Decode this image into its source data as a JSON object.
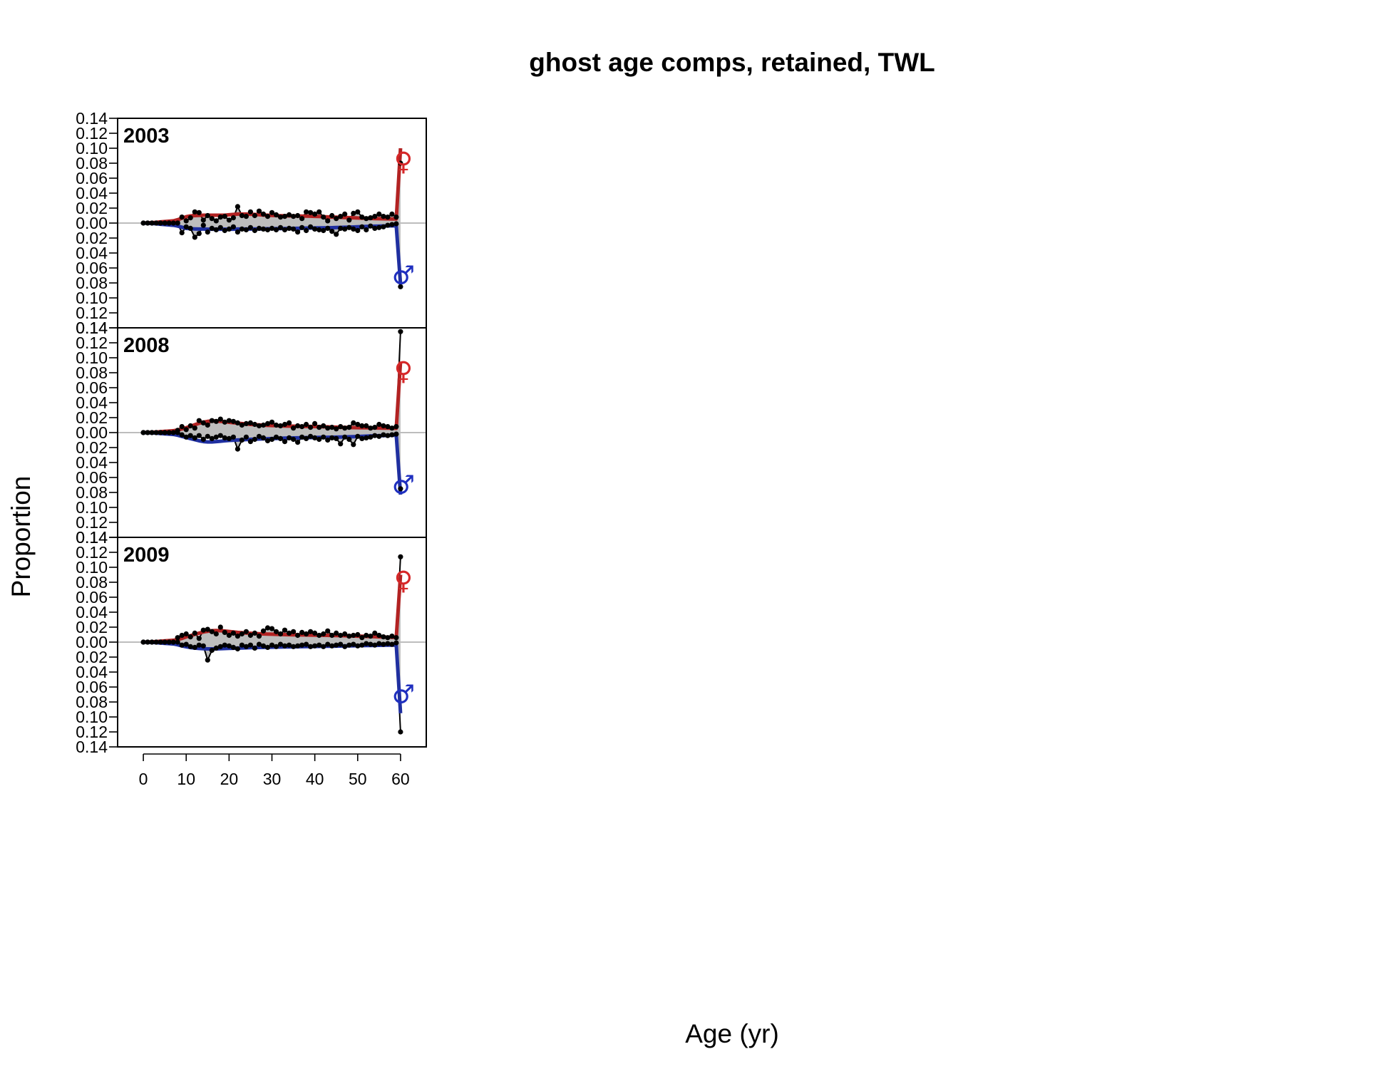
{
  "chart_data": {
    "type": "line",
    "title": "ghost age comps, retained, TWL",
    "xlabel": "Age (yr)",
    "ylabel": "Proportion",
    "xlim": [
      -6,
      66
    ],
    "ylim": [
      -0.14,
      0.14
    ],
    "x_ticks": [
      0,
      10,
      20,
      30,
      40,
      50,
      60
    ],
    "y_ticks": [
      0.14,
      0.12,
      0.1,
      0.08,
      0.06,
      0.04,
      0.02,
      0.0,
      0.02,
      0.04,
      0.06,
      0.08,
      0.1,
      0.12,
      0.14
    ],
    "x_tick_labels": [
      "0",
      "10",
      "20",
      "30",
      "40",
      "50",
      "60"
    ],
    "y_tick_labels": [
      "0.14",
      "0.12",
      "0.10",
      "0.08",
      "0.06",
      "0.04",
      "0.02",
      "0.00",
      "0.02",
      "0.04",
      "0.06",
      "0.08",
      "0.10",
      "0.12",
      "0.14"
    ],
    "colors": {
      "female": "#d62728",
      "female_line": "#b22222",
      "male": "#1f2fbf",
      "male_line": "#1f2fa0",
      "observed": "#000000",
      "fill": "#bdbdbd",
      "zero_line": "#bdbdbd"
    },
    "female_symbol": "♀",
    "male_symbol": "♂",
    "panels": [
      {
        "label": "2003",
        "obs_female": [
          0,
          0,
          0,
          0,
          0,
          0,
          0,
          0,
          0,
          0.008,
          0.003,
          0.007,
          0.015,
          0.014,
          0.004,
          0.01,
          0.006,
          0.003,
          0.008,
          0.009,
          0.004,
          0.007,
          0.022,
          0.01,
          0.009,
          0.015,
          0.01,
          0.016,
          0.012,
          0.009,
          0.014,
          0.011,
          0.008,
          0.009,
          0.011,
          0.009,
          0.01,
          0.006,
          0.015,
          0.014,
          0.012,
          0.015,
          0.008,
          0.003,
          0.01,
          0.006,
          0.009,
          0.012,
          0.004,
          0.013,
          0.015,
          0.008,
          0.006,
          0.007,
          0.009,
          0.012,
          0.009,
          0.008,
          0.012,
          0.008,
          0.08
        ],
        "obs_male": [
          0,
          0,
          0,
          0,
          0,
          0,
          0,
          0,
          0,
          -0.013,
          -0.005,
          -0.007,
          -0.019,
          -0.014,
          -0.003,
          -0.012,
          -0.007,
          -0.009,
          -0.006,
          -0.01,
          -0.008,
          -0.005,
          -0.012,
          -0.008,
          -0.009,
          -0.006,
          -0.01,
          -0.007,
          -0.008,
          -0.009,
          -0.007,
          -0.009,
          -0.006,
          -0.009,
          -0.007,
          -0.008,
          -0.012,
          -0.006,
          -0.01,
          -0.005,
          -0.008,
          -0.009,
          -0.01,
          -0.007,
          -0.011,
          -0.015,
          -0.007,
          -0.008,
          -0.006,
          -0.008,
          -0.01,
          -0.005,
          -0.009,
          -0.004,
          -0.007,
          -0.006,
          -0.005,
          -0.003,
          -0.002,
          -0.001,
          -0.085
        ],
        "exp_female": [
          0,
          0.0002,
          0.0005,
          0.001,
          0.0015,
          0.002,
          0.0025,
          0.003,
          0.0045,
          0.0065,
          0.0085,
          0.0095,
          0.01,
          0.0103,
          0.0105,
          0.0105,
          0.0105,
          0.0105,
          0.0105,
          0.0105,
          0.011,
          0.0115,
          0.012,
          0.012,
          0.012,
          0.0118,
          0.0115,
          0.0112,
          0.0108,
          0.0105,
          0.0102,
          0.01,
          0.0098,
          0.0097,
          0.0096,
          0.0095,
          0.0094,
          0.0093,
          0.0092,
          0.0091,
          0.009,
          0.0088,
          0.0085,
          0.0082,
          0.008,
          0.0078,
          0.0076,
          0.0074,
          0.0072,
          0.007,
          0.0068,
          0.0066,
          0.0064,
          0.0062,
          0.006,
          0.0058,
          0.0057,
          0.0056,
          0.0055,
          0.0054,
          0.1
        ],
        "exp_male": [
          0,
          -0.0002,
          -0.0005,
          -0.001,
          -0.0015,
          -0.002,
          -0.0025,
          -0.003,
          -0.004,
          -0.0055,
          -0.007,
          -0.0075,
          -0.0078,
          -0.008,
          -0.008,
          -0.0082,
          -0.0082,
          -0.0082,
          -0.0082,
          -0.0082,
          -0.0082,
          -0.0082,
          -0.008,
          -0.008,
          -0.008,
          -0.008,
          -0.0079,
          -0.0078,
          -0.0077,
          -0.0076,
          -0.0076,
          -0.0075,
          -0.0074,
          -0.0073,
          -0.0072,
          -0.0071,
          -0.007,
          -0.0069,
          -0.0068,
          -0.0067,
          -0.0066,
          -0.0065,
          -0.0064,
          -0.0063,
          -0.0062,
          -0.006,
          -0.0058,
          -0.0056,
          -0.0054,
          -0.0052,
          -0.005,
          -0.0048,
          -0.0046,
          -0.0044,
          -0.0042,
          -0.004,
          -0.0039,
          -0.0038,
          -0.0037,
          -0.0036,
          -0.082
        ]
      },
      {
        "label": "2008",
        "obs_female": [
          0,
          0,
          0,
          0,
          0,
          0,
          0,
          0,
          0.003,
          0.008,
          0.004,
          0.009,
          0.006,
          0.016,
          0.013,
          0.01,
          0.016,
          0.015,
          0.018,
          0.014,
          0.016,
          0.015,
          0.013,
          0.01,
          0.012,
          0.013,
          0.011,
          0.009,
          0.01,
          0.012,
          0.014,
          0.01,
          0.009,
          0.011,
          0.013,
          0.006,
          0.009,
          0.008,
          0.011,
          0.007,
          0.012,
          0.007,
          0.009,
          0.006,
          0.007,
          0.005,
          0.008,
          0.006,
          0.007,
          0.013,
          0.011,
          0.009,
          0.009,
          0.006,
          0.007,
          0.011,
          0.009,
          0.008,
          0.006,
          0.008,
          0.135
        ],
        "obs_male": [
          0,
          0,
          0,
          0,
          0,
          0,
          0,
          0,
          0,
          -0.003,
          -0.006,
          -0.004,
          -0.007,
          -0.004,
          -0.009,
          -0.005,
          -0.008,
          -0.006,
          -0.004,
          -0.007,
          -0.008,
          -0.006,
          -0.022,
          -0.01,
          -0.006,
          -0.012,
          -0.009,
          -0.005,
          -0.007,
          -0.011,
          -0.009,
          -0.006,
          -0.008,
          -0.012,
          -0.007,
          -0.009,
          -0.013,
          -0.006,
          -0.008,
          -0.005,
          -0.007,
          -0.009,
          -0.006,
          -0.01,
          -0.007,
          -0.008,
          -0.015,
          -0.006,
          -0.009,
          -0.016,
          -0.005,
          -0.008,
          -0.007,
          -0.006,
          -0.004,
          -0.005,
          -0.003,
          -0.004,
          -0.003,
          -0.002,
          -0.075
        ],
        "exp_female": [
          0,
          0.0002,
          0.0004,
          0.0008,
          0.0012,
          0.0016,
          0.002,
          0.0025,
          0.0035,
          0.005,
          0.0065,
          0.0085,
          0.0105,
          0.0125,
          0.014,
          0.015,
          0.0155,
          0.0155,
          0.015,
          0.0145,
          0.0138,
          0.0132,
          0.0126,
          0.012,
          0.0115,
          0.011,
          0.0106,
          0.0102,
          0.0099,
          0.0096,
          0.0094,
          0.0092,
          0.009,
          0.0088,
          0.0087,
          0.0086,
          0.0085,
          0.0084,
          0.0083,
          0.0082,
          0.0081,
          0.008,
          0.0078,
          0.0076,
          0.0074,
          0.0072,
          0.007,
          0.0069,
          0.0068,
          0.0067,
          0.0066,
          0.0065,
          0.0064,
          0.0063,
          0.0062,
          0.0061,
          0.006,
          0.0059,
          0.0058,
          0.0057,
          0.095
        ],
        "exp_male": [
          0,
          -0.0002,
          -0.0004,
          -0.0008,
          -0.0012,
          -0.0016,
          -0.002,
          -0.0025,
          -0.0035,
          -0.005,
          -0.0065,
          -0.008,
          -0.0095,
          -0.011,
          -0.012,
          -0.0125,
          -0.0125,
          -0.012,
          -0.0115,
          -0.011,
          -0.0105,
          -0.0102,
          -0.0099,
          -0.0096,
          -0.0093,
          -0.009,
          -0.0088,
          -0.0086,
          -0.0084,
          -0.0082,
          -0.008,
          -0.0078,
          -0.0076,
          -0.0074,
          -0.0072,
          -0.0071,
          -0.007,
          -0.0069,
          -0.0068,
          -0.0067,
          -0.0066,
          -0.0065,
          -0.0064,
          -0.0063,
          -0.0062,
          -0.0061,
          -0.006,
          -0.0058,
          -0.0056,
          -0.0054,
          -0.0052,
          -0.005,
          -0.0048,
          -0.0046,
          -0.0044,
          -0.0042,
          -0.004,
          -0.0038,
          -0.0036,
          -0.0034,
          -0.083
        ]
      },
      {
        "label": "2009",
        "obs_female": [
          0,
          0,
          0,
          0,
          0,
          0,
          0,
          0,
          0.006,
          0.009,
          0.011,
          0.007,
          0.012,
          0.005,
          0.016,
          0.017,
          0.014,
          0.011,
          0.02,
          0.013,
          0.009,
          0.012,
          0.008,
          0.011,
          0.014,
          0.009,
          0.012,
          0.008,
          0.015,
          0.019,
          0.018,
          0.014,
          0.011,
          0.016,
          0.012,
          0.014,
          0.009,
          0.013,
          0.011,
          0.014,
          0.012,
          0.009,
          0.011,
          0.015,
          0.009,
          0.012,
          0.009,
          0.011,
          0.008,
          0.009,
          0.01,
          0.006,
          0.009,
          0.008,
          0.012,
          0.009,
          0.007,
          0.006,
          0.008,
          0.006,
          0.114
        ],
        "obs_male": [
          0,
          0,
          0,
          0,
          0,
          0,
          0,
          0,
          0,
          -0.004,
          -0.003,
          -0.006,
          -0.007,
          -0.004,
          -0.005,
          -0.024,
          -0.011,
          -0.008,
          -0.006,
          -0.004,
          -0.005,
          -0.007,
          -0.009,
          -0.004,
          -0.006,
          -0.004,
          -0.008,
          -0.003,
          -0.005,
          -0.007,
          -0.004,
          -0.006,
          -0.003,
          -0.005,
          -0.004,
          -0.006,
          -0.005,
          -0.004,
          -0.003,
          -0.006,
          -0.005,
          -0.004,
          -0.006,
          -0.003,
          -0.005,
          -0.004,
          -0.003,
          -0.006,
          -0.004,
          -0.003,
          -0.005,
          -0.004,
          -0.002,
          -0.003,
          -0.004,
          -0.002,
          -0.003,
          -0.002,
          -0.003,
          -0.001,
          -0.12
        ],
        "exp_female": [
          0,
          0.0002,
          0.0004,
          0.0008,
          0.0012,
          0.0016,
          0.002,
          0.0025,
          0.0035,
          0.005,
          0.007,
          0.0085,
          0.0105,
          0.012,
          0.0135,
          0.0145,
          0.0152,
          0.0155,
          0.0152,
          0.0148,
          0.0142,
          0.0136,
          0.013,
          0.0126,
          0.0122,
          0.0118,
          0.0115,
          0.0112,
          0.011,
          0.0108,
          0.0106,
          0.0104,
          0.0102,
          0.01,
          0.0099,
          0.0098,
          0.0097,
          0.0096,
          0.0095,
          0.0094,
          0.0093,
          0.0092,
          0.0091,
          0.009,
          0.0089,
          0.0088,
          0.0087,
          0.0086,
          0.0084,
          0.0082,
          0.008,
          0.0078,
          0.0076,
          0.0074,
          0.0072,
          0.007,
          0.0068,
          0.0066,
          0.0064,
          0.0062,
          0.09
        ],
        "exp_male": [
          0,
          -0.0002,
          -0.0004,
          -0.0008,
          -0.0012,
          -0.0016,
          -0.002,
          -0.0025,
          -0.0035,
          -0.005,
          -0.0062,
          -0.0072,
          -0.008,
          -0.0085,
          -0.0088,
          -0.009,
          -0.009,
          -0.009,
          -0.0088,
          -0.0086,
          -0.0084,
          -0.0082,
          -0.008,
          -0.0078,
          -0.0076,
          -0.0074,
          -0.0072,
          -0.0071,
          -0.007,
          -0.0069,
          -0.0068,
          -0.0067,
          -0.0066,
          -0.0065,
          -0.0064,
          -0.0063,
          -0.0062,
          -0.0061,
          -0.006,
          -0.0059,
          -0.0058,
          -0.0057,
          -0.0056,
          -0.0055,
          -0.0054,
          -0.0053,
          -0.0052,
          -0.0051,
          -0.005,
          -0.0049,
          -0.0048,
          -0.0047,
          -0.0046,
          -0.0045,
          -0.0044,
          -0.0043,
          -0.0042,
          -0.0041,
          -0.004,
          -0.0039,
          -0.095
        ]
      }
    ]
  }
}
